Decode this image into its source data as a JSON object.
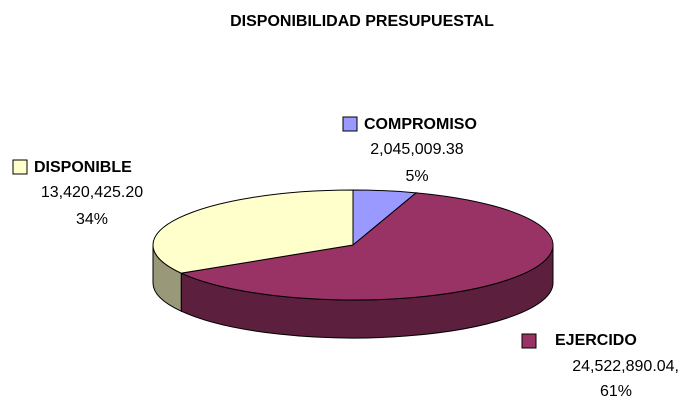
{
  "chart_data": {
    "type": "pie",
    "title": "DISPONIBILIDAD PRESUPUESTAL",
    "categories": [
      "COMPROMISO",
      "EJERCIDO",
      "DISPONIBLE"
    ],
    "values": [
      2045009.38,
      24522890.04,
      13420425.2
    ],
    "value_labels": [
      "2,045,009.38",
      "24,522,890.04,",
      "13,420,425.20"
    ],
    "percents": [
      5,
      61,
      34
    ],
    "percent_labels": [
      "5%",
      "61%",
      "34%"
    ],
    "colors": [
      "#9999ff",
      "#993366",
      "#ffffcc"
    ],
    "three_d": true
  }
}
